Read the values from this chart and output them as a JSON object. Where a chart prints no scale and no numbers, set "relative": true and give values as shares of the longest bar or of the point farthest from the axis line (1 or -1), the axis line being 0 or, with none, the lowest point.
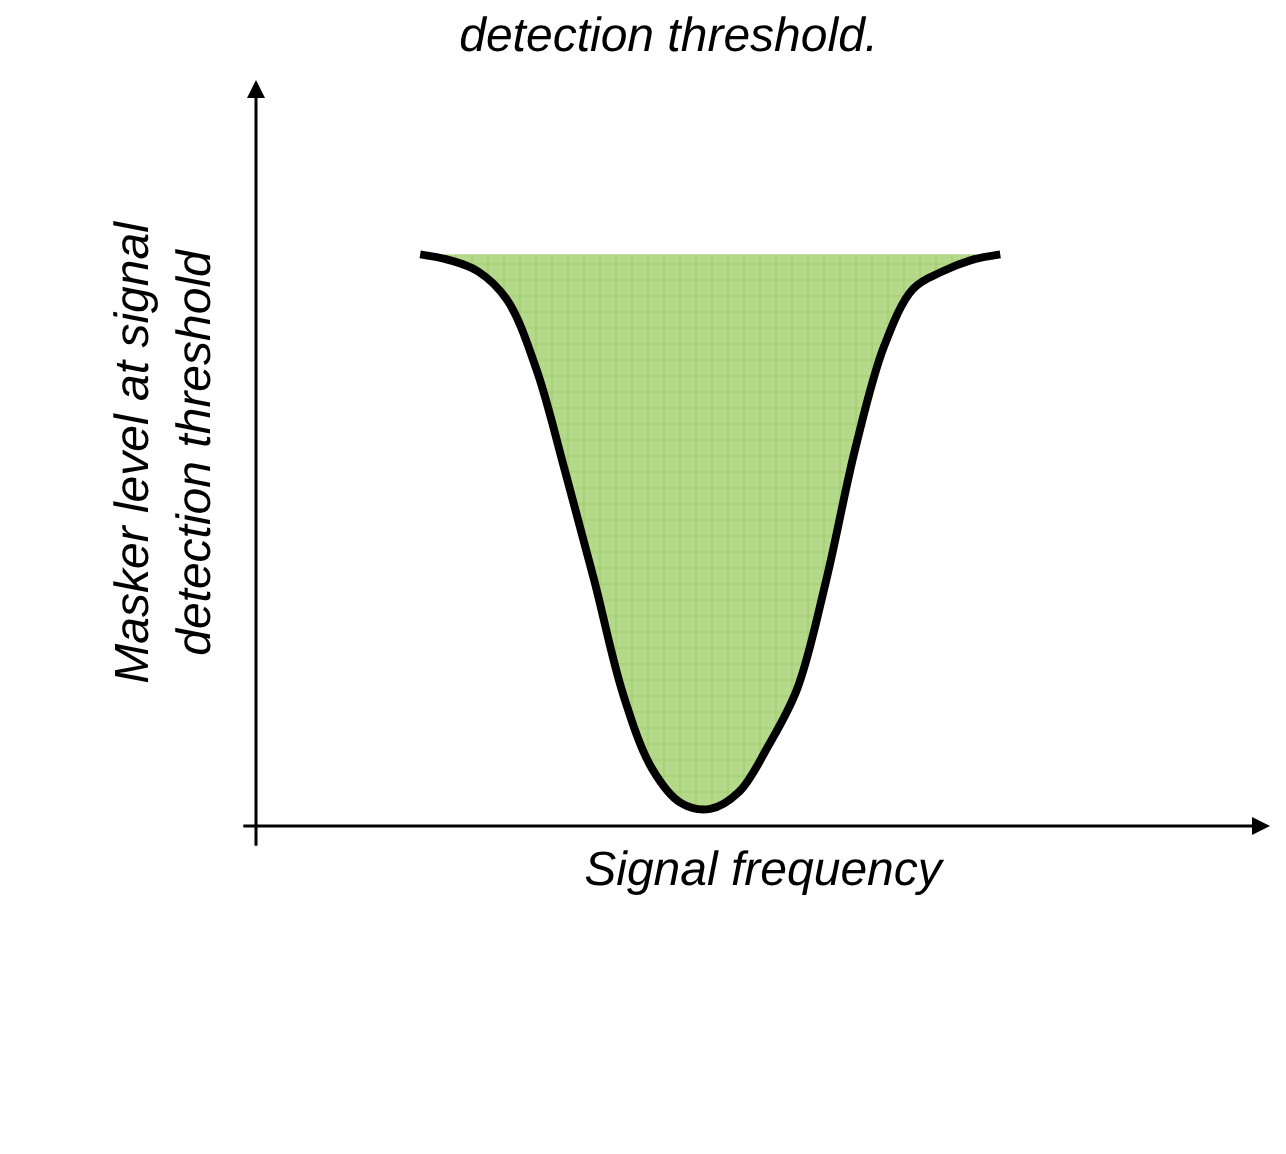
{
  "chart_data": {
    "type": "area",
    "title": "detection threshold.",
    "xlabel": "Signal frequency",
    "ylabel": "Masker level at signal\ndetection threshold",
    "relative": true,
    "categories": [
      null,
      null,
      null,
      null,
      null,
      null,
      null,
      null,
      null,
      null,
      null,
      null,
      null,
      null,
      null,
      null,
      null,
      null,
      null,
      null,
      null
    ],
    "series": [
      {
        "color": "#000000",
        "values": [
          1.0,
          0.99,
          0.97,
          0.92,
          0.8,
          0.62,
          0.43,
          0.23,
          0.1,
          0.04,
          0.03,
          0.06,
          0.14,
          0.24,
          0.43,
          0.66,
          0.84,
          0.94,
          0.97,
          0.99,
          1.0
        ]
      }
    ]
  }
}
